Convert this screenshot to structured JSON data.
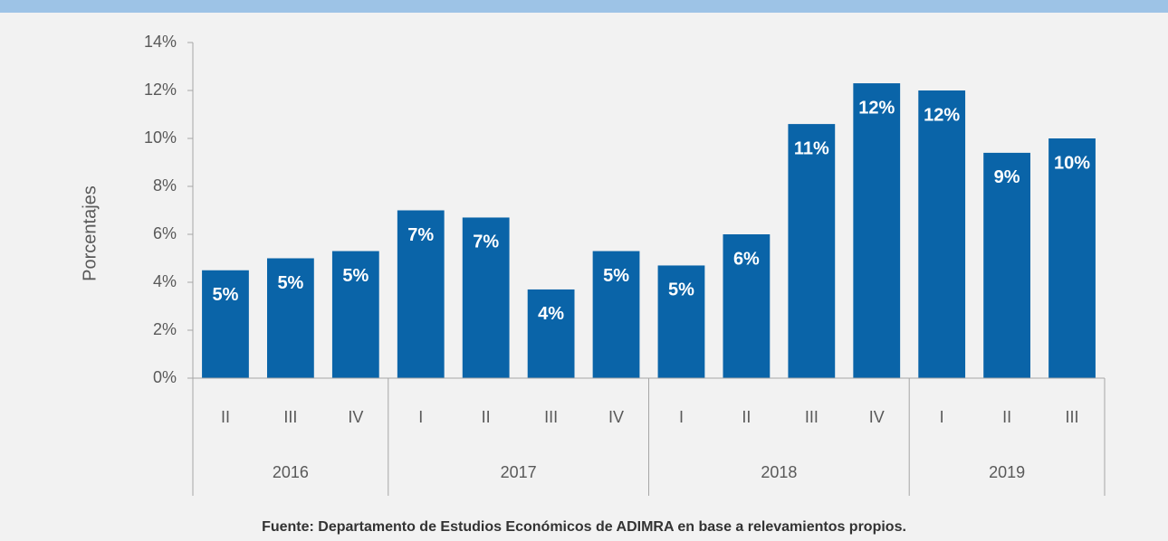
{
  "chart_data": {
    "type": "bar",
    "y_label": "Porcentajes",
    "source": "Fuente: Departamento de Estudios Económicos de ADIMRA en base a relevamientos propios.",
    "categories": [
      "II",
      "III",
      "IV",
      "I",
      "II",
      "III",
      "IV",
      "I",
      "II",
      "III",
      "IV",
      "I",
      "II",
      "III"
    ],
    "groups": [
      {
        "label": "2016",
        "size": 3
      },
      {
        "label": "2017",
        "size": 4
      },
      {
        "label": "2018",
        "size": 4
      },
      {
        "label": "2019",
        "size": 3
      }
    ],
    "values": [
      4.5,
      5.0,
      5.3,
      7.0,
      6.7,
      3.7,
      5.3,
      4.7,
      6.0,
      10.6,
      12.3,
      12.0,
      9.4,
      10.0
    ],
    "value_labels": [
      "5%",
      "5%",
      "5%",
      "7%",
      "7%",
      "4%",
      "5%",
      "5%",
      "6%",
      "11%",
      "12%",
      "12%",
      "9%",
      "10%"
    ],
    "color": "#0a64a8",
    "ylim": [
      0,
      14
    ],
    "yticks": [
      {
        "value": 0,
        "label": "0%"
      },
      {
        "value": 2,
        "label": "2%"
      },
      {
        "value": 4,
        "label": "4%"
      },
      {
        "value": 6,
        "label": "6%"
      },
      {
        "value": 8,
        "label": "8%"
      },
      {
        "value": 10,
        "label": "10%"
      },
      {
        "value": 12,
        "label": "12%"
      },
      {
        "value": 14,
        "label": "14%"
      }
    ],
    "grid": false
  }
}
